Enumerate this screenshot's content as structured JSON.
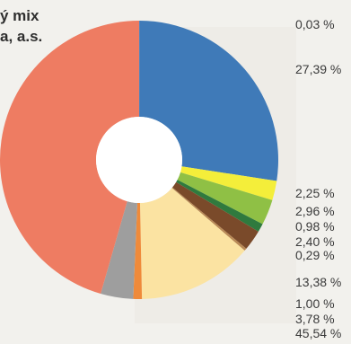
{
  "title_lines": [
    "ý mix",
    "a, a.s."
  ],
  "chart_data": {
    "type": "pie",
    "donut": true,
    "labels": [
      "0,03 %",
      "27,39 %",
      "2,25 %",
      "2,96 %",
      "0,98 %",
      "2,40 %",
      "0,29 %",
      "13,38 %",
      "1,00 %",
      "3,78 %",
      "45,54 %"
    ],
    "values": [
      0.03,
      27.39,
      2.25,
      2.96,
      0.98,
      2.4,
      0.29,
      13.38,
      1.0,
      3.78,
      45.54
    ],
    "colors": [
      "#2f6fb0",
      "#3f7ab8",
      "#f4ee3a",
      "#8fc045",
      "#2f7a3e",
      "#7a4a2a",
      "#b98a56",
      "#fbe3a2",
      "#ef8a3a",
      "#9e9e9e",
      "#ee7c62"
    ]
  }
}
